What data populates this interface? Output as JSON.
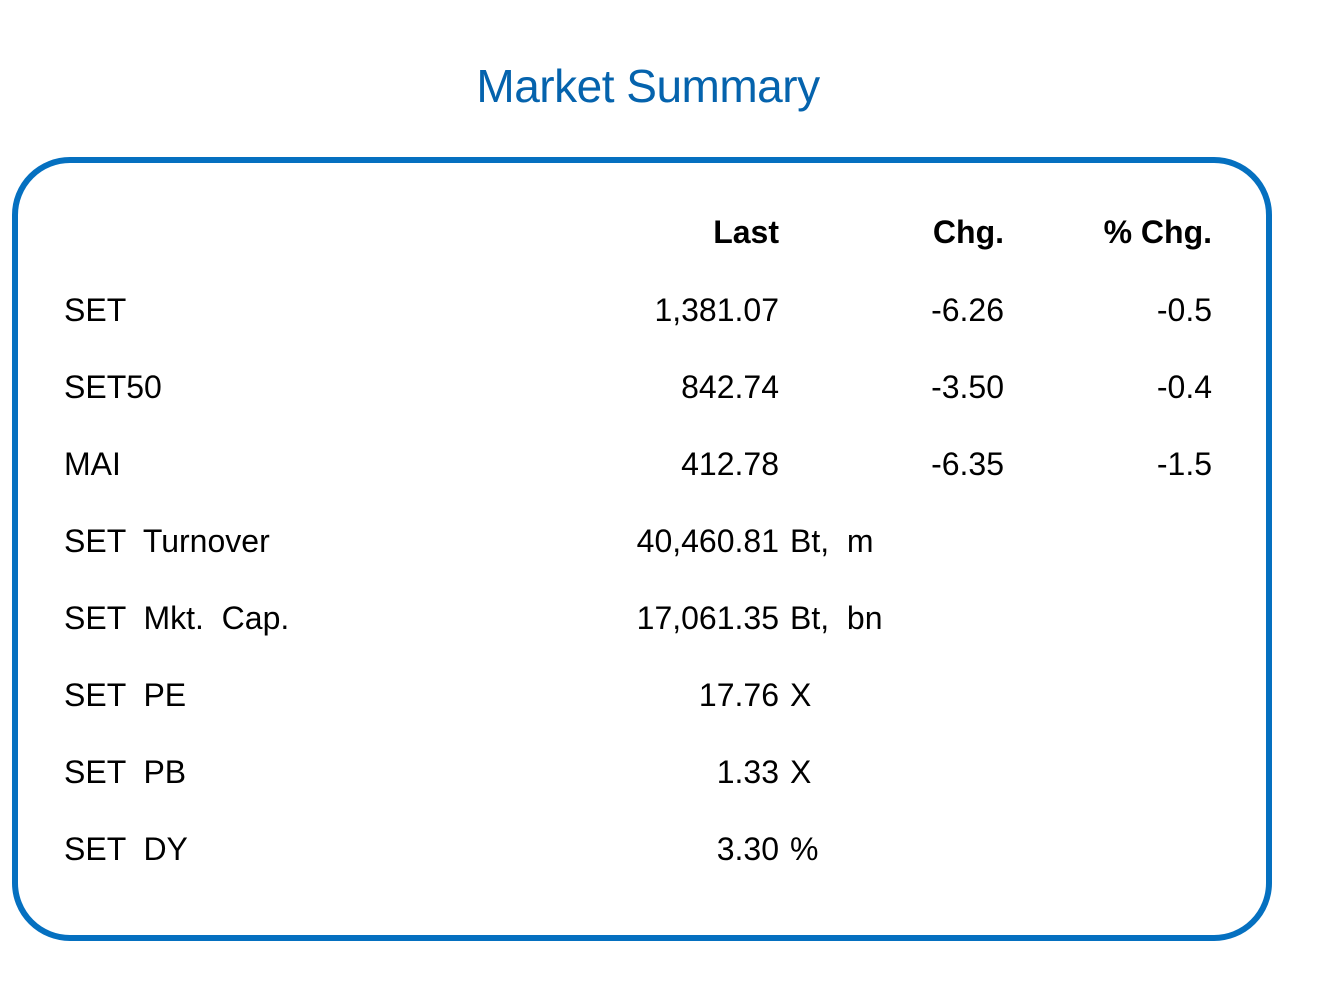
{
  "title": "Market Summary",
  "headers": {
    "last": "Last",
    "chg": "Chg.",
    "pct_chg": "% Chg."
  },
  "rows": [
    {
      "label": "SET",
      "last": "1,381.07",
      "unit": "",
      "chg": "-6.26",
      "pct_chg": "-0.5"
    },
    {
      "label": "SET50",
      "last": "842.74",
      "unit": "",
      "chg": "-3.50",
      "pct_chg": "-0.4"
    },
    {
      "label": "MAI",
      "last": "412.78",
      "unit": "",
      "chg": "-6.35",
      "pct_chg": "-1.5"
    },
    {
      "label": "SET  Turnover",
      "last": "40,460.81",
      "unit": "Bt,  m",
      "chg": "",
      "pct_chg": ""
    },
    {
      "label": "SET  Mkt.  Cap.",
      "last": "17,061.35",
      "unit": "Bt,  bn",
      "chg": "",
      "pct_chg": ""
    },
    {
      "label": "SET  PE",
      "last": "17.76",
      "unit": "X",
      "chg": "",
      "pct_chg": ""
    },
    {
      "label": "SET  PB",
      "last": "1.33",
      "unit": "X",
      "chg": "",
      "pct_chg": ""
    },
    {
      "label": "SET  DY",
      "last": "3.30",
      "unit": "%",
      "chg": "",
      "pct_chg": ""
    }
  ],
  "colors": {
    "title": "#0563ad",
    "border": "#0570c0"
  }
}
